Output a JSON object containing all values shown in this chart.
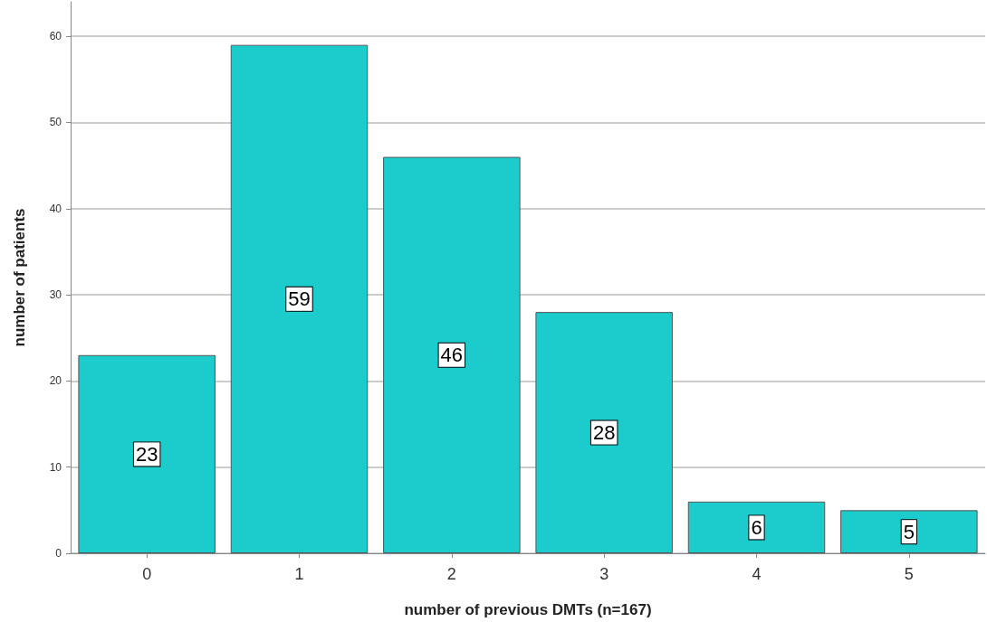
{
  "chart_data": {
    "type": "bar",
    "xlabel": "number of previous DMTs (n=167)",
    "ylabel": "number of patients",
    "categories": [
      "0",
      "1",
      "2",
      "3",
      "4",
      "5"
    ],
    "values": [
      23,
      59,
      46,
      28,
      6,
      5
    ],
    "color": "#1ccccc",
    "ylim": [
      0,
      64
    ],
    "yticks": [
      0,
      10,
      20,
      30,
      40,
      50,
      60
    ],
    "grid": "y",
    "data_labels": true
  }
}
